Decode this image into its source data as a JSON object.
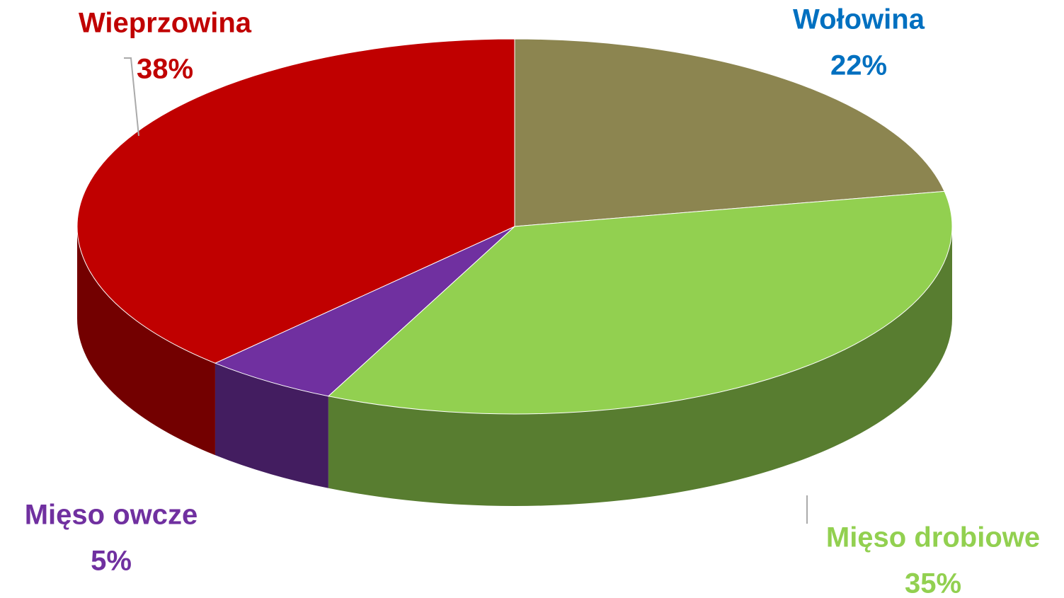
{
  "chart_data": {
    "type": "pie",
    "categories": [
      "Wołowina",
      "Mięso drobiowe",
      "Mięso owcze",
      "Wieprzowina"
    ],
    "values": [
      22,
      35,
      5,
      38
    ],
    "value_labels": [
      "22%",
      "35%",
      "5%",
      "38%"
    ],
    "colors": [
      "#8c8550",
      "#92d050",
      "#7030a0",
      "#c00000"
    ],
    "label_colors": [
      "#0070c0",
      "#92d050",
      "#7030a0",
      "#c00000"
    ]
  }
}
